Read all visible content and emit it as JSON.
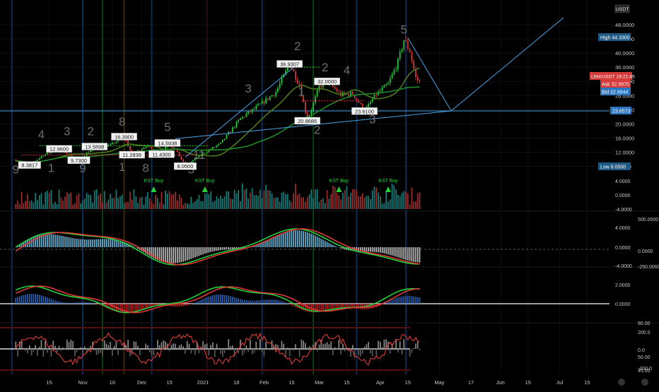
{
  "header": {
    "currency_badge": "USDT",
    "settings_icon": "gear-icon"
  },
  "price_axis": {
    "labels": [
      "48.0000",
      "44.0000",
      "40.0000",
      "36.0000",
      "32.0000",
      "28.0000",
      "24.0000",
      "20.0000",
      "16.0000",
      "12.0000",
      "8.0000"
    ],
    "values": [
      48,
      44,
      40,
      36,
      32,
      28,
      24,
      20,
      16,
      12,
      8
    ]
  },
  "price_tags": {
    "high": "High  44.3300",
    "symbol": "LINKUSDT  19:21:45",
    "ask": "Ask  32.9970",
    "bid": "Bid  32.9944",
    "level": "23.6573",
    "low": "Low  8.0500"
  },
  "price_annotations": [
    {
      "text": "8.3817",
      "date": "2020-10-05",
      "price": 8.38
    },
    {
      "text": "12.9600",
      "date": "2020-10-20",
      "price": 12.96
    },
    {
      "text": "9.7300",
      "date": "2020-10-30",
      "price": 9.73
    },
    {
      "text": "13.5898",
      "date": "2020-11-07",
      "price": 13.59
    },
    {
      "text": "16.3900",
      "date": "2020-11-22",
      "price": 16.39
    },
    {
      "text": "11.2839",
      "date": "2020-11-26",
      "price": 11.28
    },
    {
      "text": "11.4300",
      "date": "2020-12-11",
      "price": 11.43
    },
    {
      "text": "14.5938",
      "date": "2020-12-14",
      "price": 14.59
    },
    {
      "text": "8.0500",
      "date": "2020-12-23",
      "price": 8.05
    },
    {
      "text": "36.9307",
      "date": "2021-02-14",
      "price": 36.93
    },
    {
      "text": "20.8686",
      "date": "2021-02-23",
      "price": 20.87
    },
    {
      "text": "32.0000",
      "date": "2021-03-05",
      "price": 32.0
    },
    {
      "text": "23.6100",
      "date": "2021-03-24",
      "price": 23.61
    }
  ],
  "wave_labels": [
    {
      "text": "4",
      "date": "2020-10-11",
      "price": 15.9
    },
    {
      "text": "3",
      "date": "2020-10-24",
      "price": 16.8
    },
    {
      "text": "2",
      "date": "2020-11-05",
      "price": 16.8
    },
    {
      "text": "8",
      "date": "2020-11-21",
      "price": 19.5
    },
    {
      "text": "5",
      "date": "2020-12-14",
      "price": 18.0
    },
    {
      "text": "3",
      "date": "2021-01-24",
      "price": 28.8
    },
    {
      "text": "2",
      "date": "2021-02-18",
      "price": 40.8
    },
    {
      "text": "2",
      "date": "2021-02-28",
      "price": 17.2
    },
    {
      "text": "2",
      "date": "2021-03-04",
      "price": 34.8
    },
    {
      "text": "4",
      "date": "2021-03-15",
      "price": 34.0
    },
    {
      "text": "3",
      "date": "2021-03-28",
      "price": 20.2
    },
    {
      "text": "5",
      "date": "2021-04-13",
      "price": 45.5
    },
    {
      "text": "1",
      "date": "2021-02-20",
      "price": 28.0
    },
    {
      "text": "9",
      "date": "2020-09-28",
      "price": 6.0
    },
    {
      "text": "1",
      "date": "2020-10-16",
      "price": 6.4
    },
    {
      "text": "9",
      "date": "2020-11-01",
      "price": 6.3
    },
    {
      "text": "1",
      "date": "2020-11-21",
      "price": 6.7
    },
    {
      "text": "8",
      "date": "2020-12-03",
      "price": 6.4
    },
    {
      "text": "11",
      "date": "2020-12-30",
      "price": 10.1
    },
    {
      "text": "3",
      "date": "2020-12-26",
      "price": 6.0
    }
  ],
  "kst_signals": [
    {
      "text": "KST Buy",
      "date": "2020-12-07"
    },
    {
      "text": "KST Buy",
      "date": "2021-01-02"
    },
    {
      "text": "KST Buy",
      "date": "2021-03-11"
    },
    {
      "text": "KST Buy",
      "date": "2021-04-05"
    }
  ],
  "panels": [
    {
      "labels": [
        "4.0000",
        "0.0000",
        "-4.0000"
      ]
    },
    {
      "labels": [
        "500.0000",
        "4.0000",
        "0.0000",
        "0.0000",
        "-4.0000",
        "-250.0000"
      ]
    },
    {
      "labels": [
        "2.0000",
        "0.0000"
      ]
    },
    {
      "labels": [
        "80.00",
        "200.0",
        "0.0",
        "50.00",
        "-200.0",
        "45.00"
      ]
    }
  ],
  "time_axis": {
    "labels": [
      "15",
      "Nov",
      "16",
      "Dec",
      "15",
      "2021",
      "18",
      "Feb",
      "15",
      "Mar",
      "15",
      "Apr",
      "15",
      "May",
      "17",
      "Jun",
      "15",
      "Jul",
      "15"
    ]
  },
  "chart_data": {
    "type": "line",
    "title": "",
    "symbol": "LINKUSDT",
    "x_unit": "date",
    "x_range": [
      "2020-09-28",
      "2021-07-25"
    ],
    "ylim": [
      4,
      50
    ],
    "series": [
      {
        "name": "",
        "x": [
          "2020-09-28",
          "2020-10-05",
          "2020-10-12",
          "2020-10-20",
          "2020-10-30",
          "2020-11-07",
          "2020-11-15",
          "2020-11-22",
          "2020-11-26",
          "2020-12-03",
          "2020-12-11",
          "2020-12-14",
          "2020-12-18",
          "2020-12-23",
          "2021-01-01",
          "2021-01-10",
          "2021-01-20",
          "2021-01-30",
          "2021-02-07",
          "2021-02-14",
          "2021-02-19",
          "2021-02-23",
          "2021-03-01",
          "2021-03-05",
          "2021-03-12",
          "2021-03-18",
          "2021-03-24",
          "2021-03-30",
          "2021-04-05",
          "2021-04-10",
          "2021-04-13",
          "2021-04-16",
          "2021-04-19",
          "2021-04-21"
        ],
        "y": [
          9.8,
          8.4,
          11.2,
          12.9,
          9.8,
          13.6,
          14.0,
          16.4,
          11.3,
          13.8,
          11.4,
          14.6,
          12.8,
          8.1,
          11.6,
          14.5,
          21.5,
          25.4,
          29.0,
          36.9,
          31.0,
          20.9,
          30.5,
          32.0,
          28.2,
          28.5,
          23.6,
          28.4,
          31.2,
          37.5,
          43.8,
          40.5,
          33.0,
          31.8
        ]
      }
    ],
    "horizontal_levels": [
      23.6573
    ],
    "trendlines": [
      {
        "from": {
          "date": "2020-12-23",
          "price": 10.6
        },
        "to": {
          "date": "2021-02-17",
          "price": 36.4
        }
      },
      {
        "from": {
          "date": "2020-12-18",
          "price": 15.8
        },
        "to": {
          "date": "2021-05-07",
          "price": 23.6573
        }
      },
      {
        "from": {
          "date": "2021-04-15",
          "price": 44.3
        },
        "to": {
          "date": "2021-05-07",
          "price": 23.6573
        }
      },
      {
        "from": {
          "date": "2021-05-07",
          "price": 23.6573
        },
        "to": {
          "date": "2021-07-03",
          "price": 50.0
        }
      }
    ],
    "grid": true
  },
  "colors": {
    "background": "#000000",
    "bull": "#22d43a",
    "bear": "#e03a3a",
    "level": "#4aa3e8",
    "tag_high": "#1e5a86",
    "tag_symbol": "#d63b3b",
    "tag_bid": "#2a75c0",
    "axis_text": "#c8c8c8"
  }
}
